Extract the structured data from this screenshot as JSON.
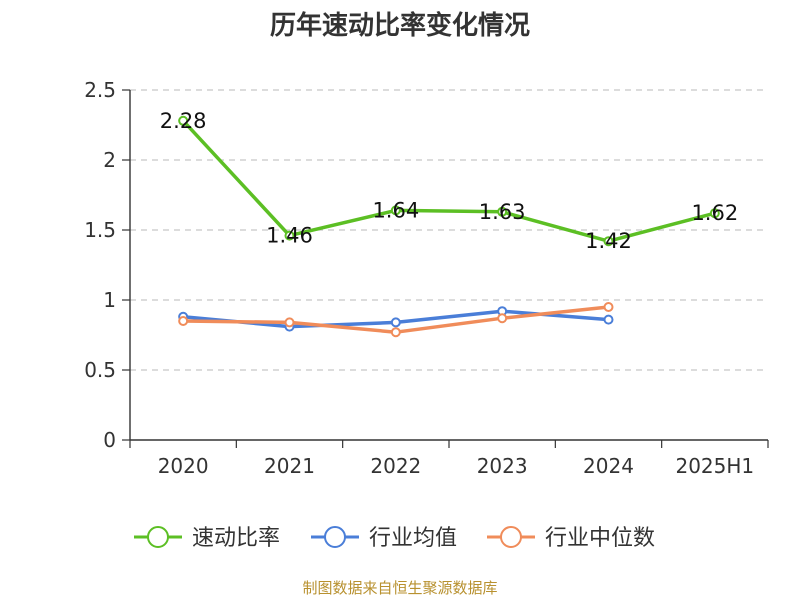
{
  "chart_data": {
    "type": "line",
    "title": "历年速动比率变化情况",
    "categories": [
      "2020",
      "2021",
      "2022",
      "2023",
      "2024",
      "2025H1"
    ],
    "ylim": [
      0,
      2.5
    ],
    "yticks": [
      "0",
      "0.5",
      "1",
      "1.5",
      "2",
      "2.5"
    ],
    "grid": true,
    "legend_position": "bottom",
    "series": [
      {
        "name": "速动比率",
        "color": "#5cbf24",
        "values": [
          2.28,
          1.46,
          1.64,
          1.63,
          1.42,
          1.62
        ],
        "labels": [
          "2.28",
          "1.46",
          "1.64",
          "1.63",
          "1.42",
          "1.62"
        ],
        "show_labels": true
      },
      {
        "name": "行业均值",
        "color": "#4a7ed8",
        "values": [
          0.88,
          0.81,
          0.84,
          0.92,
          0.86,
          null
        ],
        "show_labels": false
      },
      {
        "name": "行业中位数",
        "color": "#f08c5a",
        "values": [
          0.85,
          0.84,
          0.77,
          0.87,
          0.95,
          null
        ],
        "show_labels": false
      }
    ]
  },
  "source_text": "制图数据来自恒生聚源数据库"
}
